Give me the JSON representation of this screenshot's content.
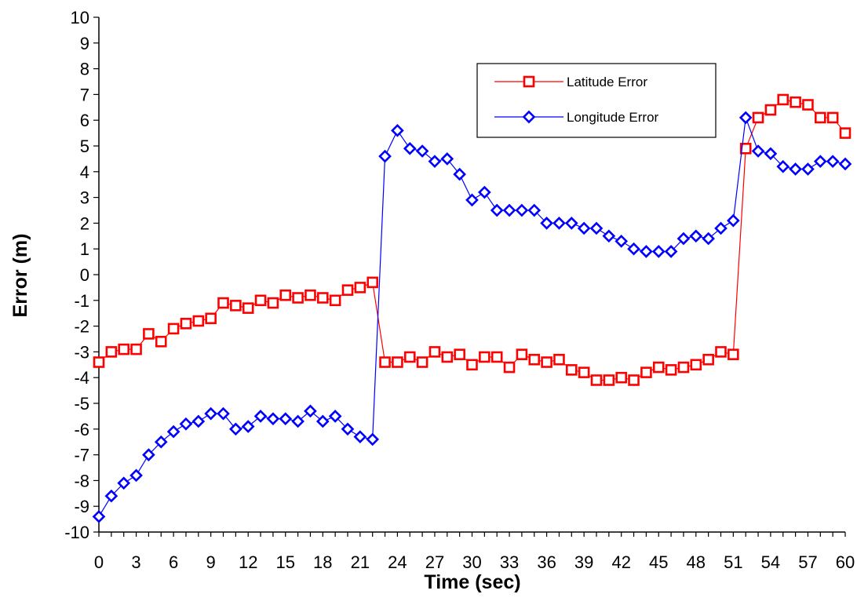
{
  "chart_data": {
    "type": "line",
    "title": "",
    "xlabel": "Time (sec)",
    "ylabel": "Error (m)",
    "xlim": [
      0,
      60
    ],
    "ylim": [
      -10,
      10
    ],
    "x_ticks": [
      "0",
      "3",
      "6",
      "9",
      "12",
      "15",
      "18",
      "21",
      "24",
      "27",
      "30",
      "33",
      "36",
      "39",
      "42",
      "45",
      "48",
      "51",
      "54",
      "57",
      "60"
    ],
    "y_ticks": [
      "10",
      "9",
      "8",
      "7",
      "6",
      "5",
      "4",
      "3",
      "2",
      "1",
      "0",
      "-1",
      "-2",
      "-3",
      "-4",
      "-5",
      "-6",
      "-7",
      "-8",
      "-9",
      "-10"
    ],
    "x": [
      0,
      1,
      2,
      3,
      4,
      5,
      6,
      7,
      8,
      9,
      10,
      11,
      12,
      13,
      14,
      15,
      16,
      17,
      18,
      19,
      20,
      21,
      22,
      23,
      24,
      25,
      26,
      27,
      28,
      29,
      30,
      31,
      32,
      33,
      34,
      35,
      36,
      37,
      38,
      39,
      40,
      41,
      42,
      43,
      44,
      45,
      46,
      47,
      48,
      49,
      50,
      51,
      52,
      53,
      54,
      55,
      56,
      57,
      58,
      59,
      60
    ],
    "grid": false,
    "legend_position": "top-right",
    "series": [
      {
        "name": "Latitude Error",
        "color": "#ff0000",
        "marker": "square",
        "values": [
          -3.4,
          -3.0,
          -2.9,
          -2.9,
          -2.3,
          -2.6,
          -2.1,
          -1.9,
          -1.8,
          -1.7,
          -1.1,
          -1.2,
          -1.3,
          -1.0,
          -1.1,
          -0.8,
          -0.9,
          -0.8,
          -0.9,
          -1.0,
          -0.6,
          -0.5,
          -0.3,
          -3.4,
          -3.4,
          -3.2,
          -3.4,
          -3.0,
          -3.2,
          -3.1,
          -3.5,
          -3.2,
          -3.2,
          -3.6,
          -3.1,
          -3.3,
          -3.4,
          -3.3,
          -3.7,
          -3.8,
          -4.1,
          -4.1,
          -4.0,
          -4.1,
          -3.8,
          -3.6,
          -3.7,
          -3.6,
          -3.5,
          -3.3,
          -3.0,
          -3.1,
          4.9,
          6.1,
          6.4,
          6.8,
          6.7,
          6.6,
          6.1,
          6.1,
          5.5
        ]
      },
      {
        "name": "Longitude Error",
        "color": "#0000ff",
        "marker": "diamond",
        "values": [
          -9.4,
          -8.6,
          -8.1,
          -7.8,
          -7.0,
          -6.5,
          -6.1,
          -5.8,
          -5.7,
          -5.4,
          -5.4,
          -6.0,
          -5.9,
          -5.5,
          -5.6,
          -5.6,
          -5.7,
          -5.3,
          -5.7,
          -5.5,
          -6.0,
          -6.3,
          -6.4,
          4.6,
          5.6,
          4.9,
          4.8,
          4.4,
          4.5,
          3.9,
          2.9,
          3.2,
          2.5,
          2.5,
          2.5,
          2.5,
          2.0,
          2.0,
          2.0,
          1.8,
          1.8,
          1.5,
          1.3,
          1.0,
          0.9,
          0.9,
          0.9,
          1.4,
          1.5,
          1.4,
          1.8,
          2.1,
          6.1,
          4.8,
          4.7,
          4.2,
          4.1,
          4.1,
          4.4,
          4.4,
          4.3
        ]
      }
    ]
  }
}
